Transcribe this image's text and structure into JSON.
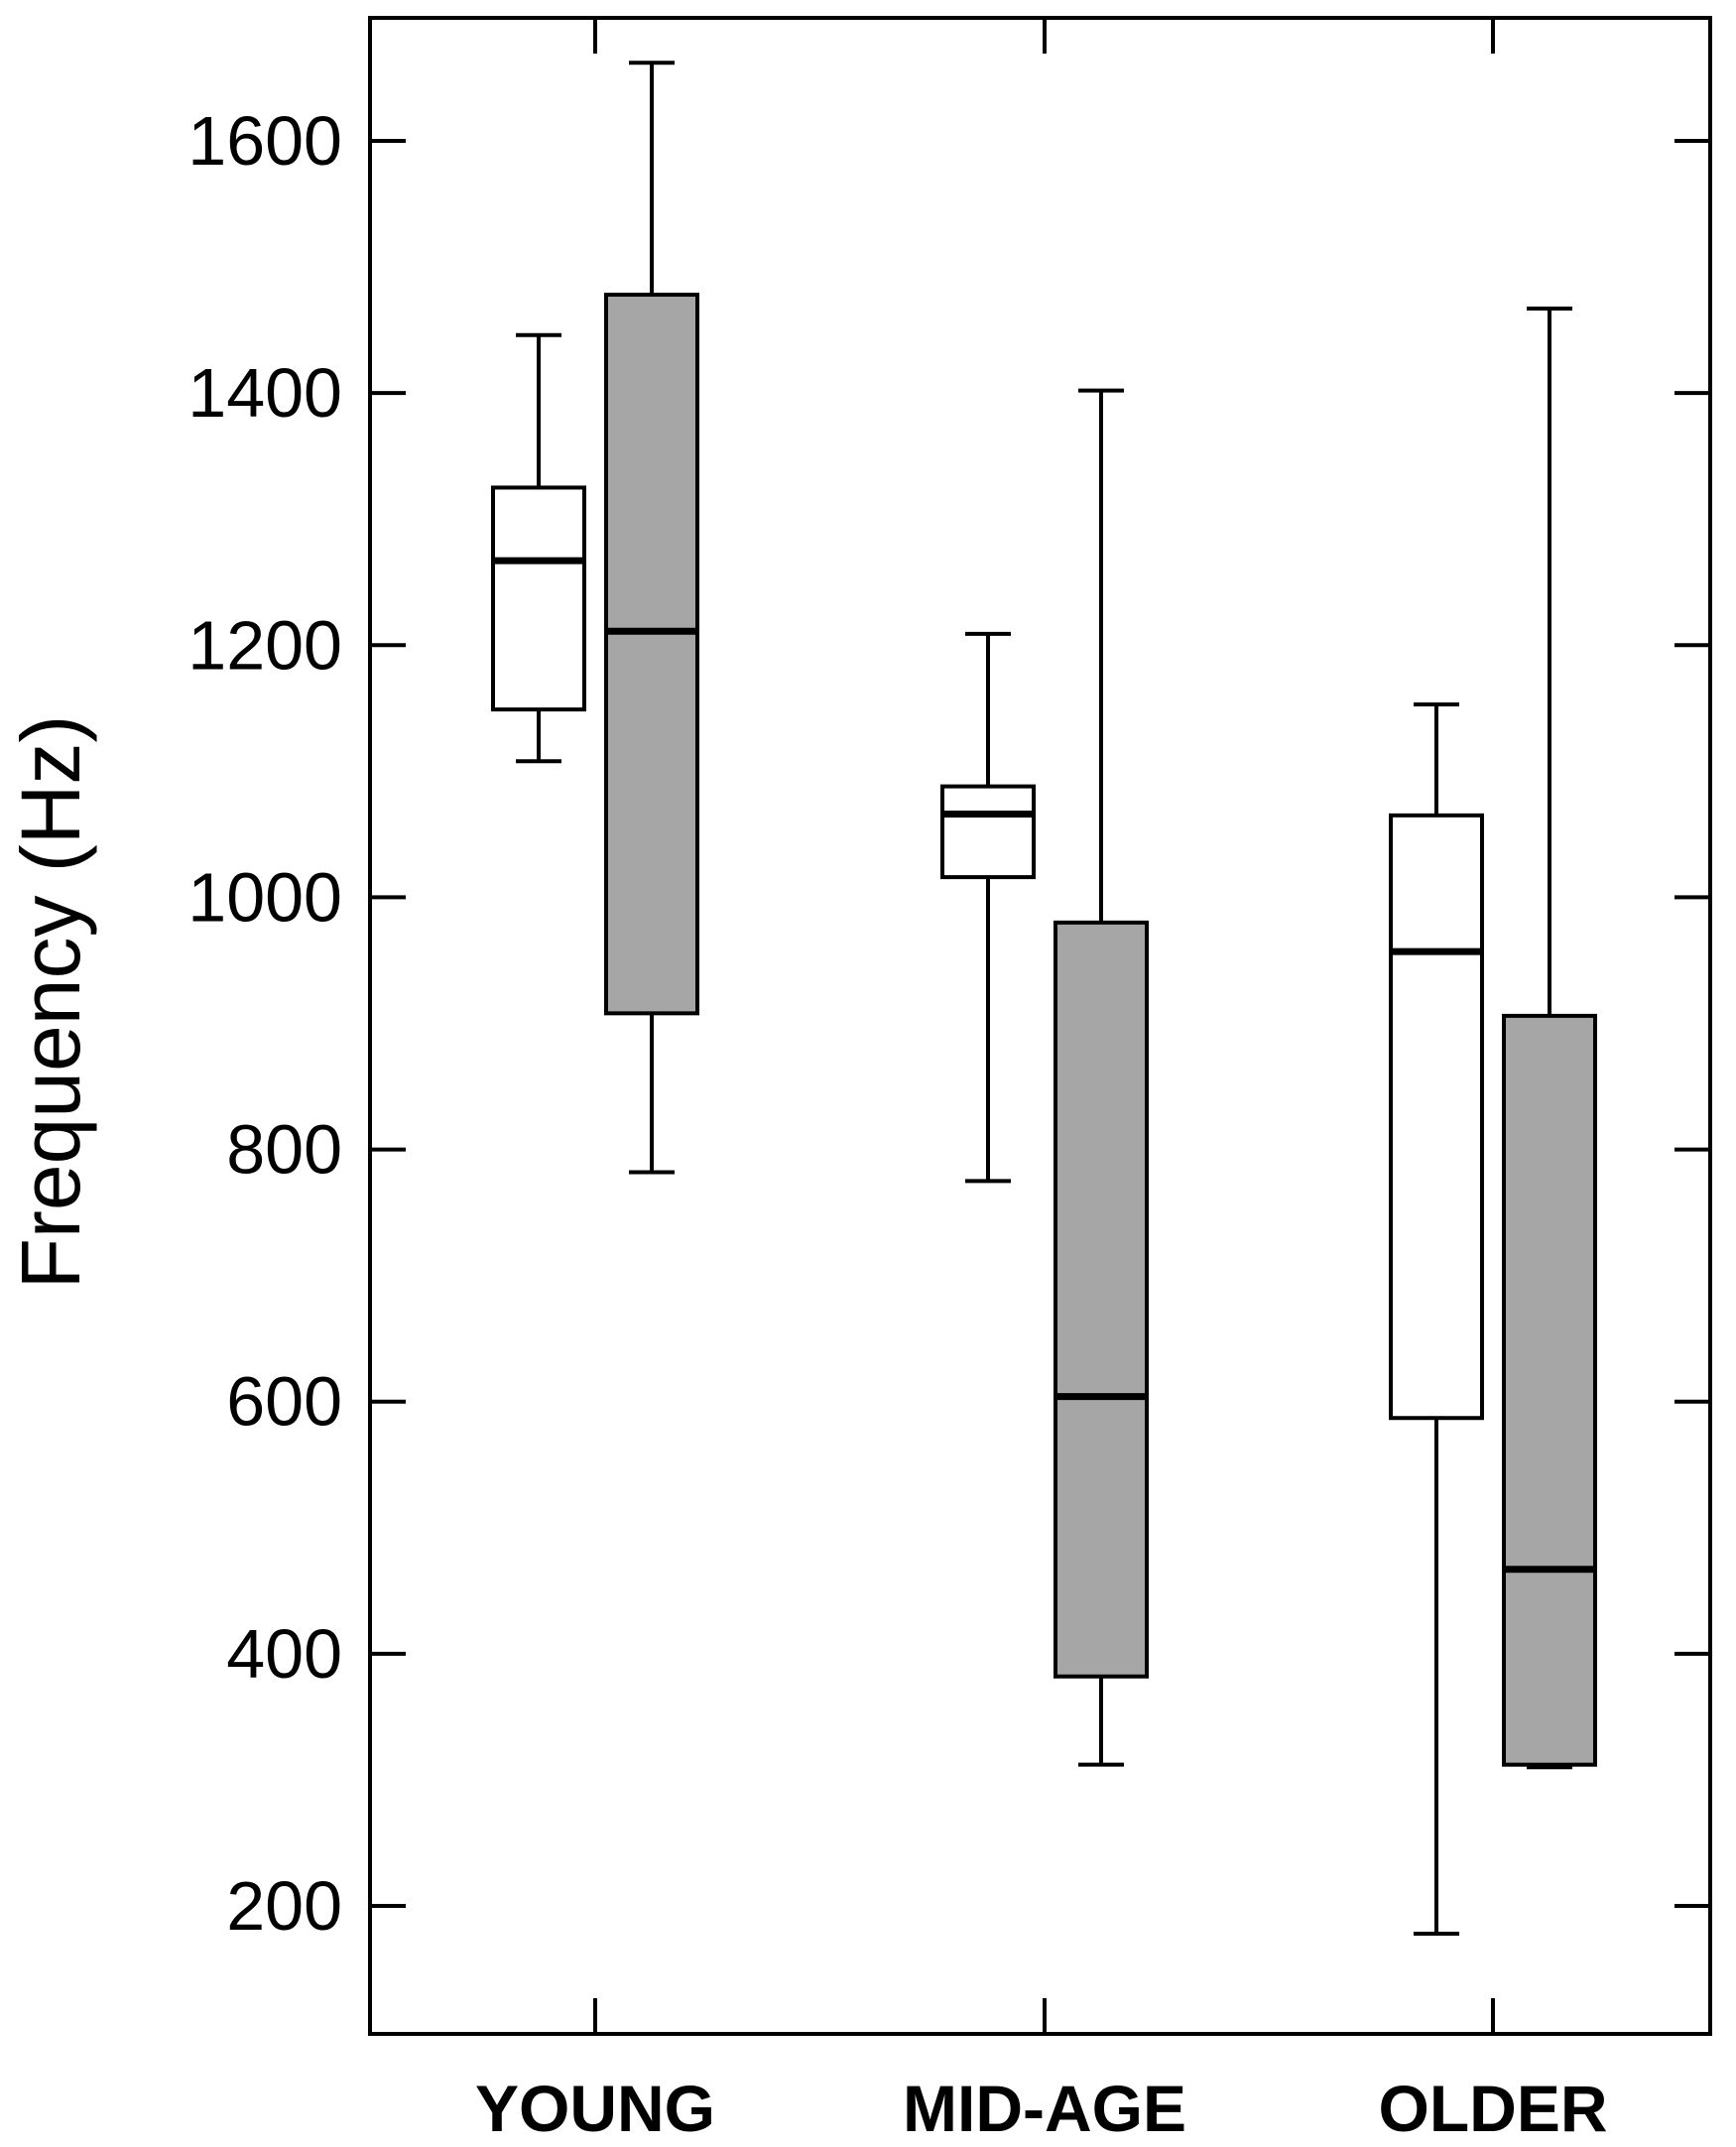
{
  "chart_data": {
    "type": "box",
    "ylabel": "Frequency (Hz)",
    "xlabel": "",
    "ylim": [
      60,
      1700
    ],
    "yticks": [
      200,
      400,
      600,
      800,
      1000,
      1200,
      1400,
      1600
    ],
    "categories": [
      "YOUNG",
      "MID-AGE",
      "OLDER"
    ],
    "grid": false,
    "series": [
      {
        "fill": "#ffffff",
        "boxes": [
          {
            "category": "YOUNG",
            "min": 1108,
            "q1": 1149,
            "median": 1267,
            "q3": 1325,
            "max": 1446
          },
          {
            "category": "MID-AGE",
            "min": 775,
            "q1": 1016,
            "median": 1066,
            "q3": 1088,
            "max": 1209
          },
          {
            "category": "OLDER",
            "min": 178,
            "q1": 587,
            "median": 957,
            "q3": 1065,
            "max": 1153
          }
        ]
      },
      {
        "fill": "#a6a6a6",
        "boxes": [
          {
            "category": "YOUNG",
            "min": 782,
            "q1": 908,
            "median": 1211,
            "q3": 1478,
            "max": 1662
          },
          {
            "category": "MID-AGE",
            "min": 312,
            "q1": 382,
            "median": 604,
            "q3": 980,
            "max": 1402
          },
          {
            "category": "OLDER",
            "min": 310,
            "q1": 312,
            "median": 467,
            "q3": 906,
            "max": 1467
          }
        ]
      }
    ]
  }
}
